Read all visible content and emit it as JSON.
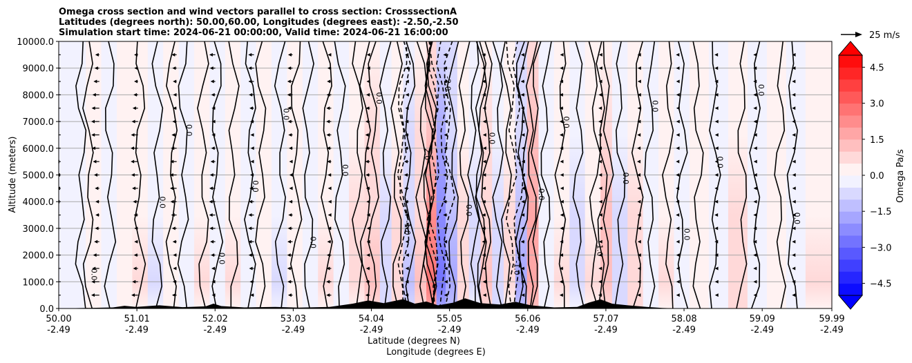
{
  "chart_data": {
    "type": "heatmap",
    "title_lines": [
      "Omega cross section and wind vectors parallel to cross section: CrosssectionA",
      "Latitudes (degrees north): 50.00,60.00, Longitudes (degrees east): -2.50,-2.50",
      "Simulation start time: 2024-06-21 00:00:00, Valid time: 2024-06-21 16:00:00"
    ],
    "xlabel_lines": [
      "Latitude (degrees N)",
      "Longitude (degrees E)"
    ],
    "ylabel": "Altitude (meters)",
    "x_ticks": [
      {
        "lat": 50.0,
        "label1": "50.00",
        "label2": "-2.49"
      },
      {
        "lat": 51.01,
        "label1": "51.01",
        "label2": "-2.49"
      },
      {
        "lat": 52.02,
        "label1": "52.02",
        "label2": "-2.49"
      },
      {
        "lat": 53.03,
        "label1": "53.03",
        "label2": "-2.49"
      },
      {
        "lat": 54.04,
        "label1": "54.04",
        "label2": "-2.49"
      },
      {
        "lat": 55.05,
        "label1": "55.05",
        "label2": "-2.49"
      },
      {
        "lat": 56.06,
        "label1": "56.06",
        "label2": "-2.49"
      },
      {
        "lat": 57.07,
        "label1": "57.07",
        "label2": "-2.49"
      },
      {
        "lat": 58.08,
        "label1": "58.08",
        "label2": "-2.49"
      },
      {
        "lat": 59.09,
        "label1": "59.09",
        "label2": "-2.49"
      },
      {
        "lat": 59.99,
        "label1": "59.99",
        "label2": "-2.49"
      }
    ],
    "xlim": [
      50.0,
      59.99
    ],
    "ylim": [
      0,
      10000
    ],
    "y_ticks": [
      0,
      1000,
      2000,
      3000,
      4000,
      5000,
      6000,
      7000,
      8000,
      9000,
      10000
    ],
    "y_tick_labels": [
      "0.0",
      "1000.0",
      "2000.0",
      "3000.0",
      "4000.0",
      "5000.0",
      "6000.0",
      "7000.0",
      "8000.0",
      "9000.0",
      "10000.0"
    ],
    "grid_horizontal": true,
    "colorbar": {
      "label": "Omega Pa/s",
      "vmin": -5.0,
      "vmax": 5.0,
      "ticks": [
        4.5,
        3.0,
        1.5,
        0.0,
        -1.5,
        -3.0,
        -4.5
      ],
      "tick_labels": [
        "4.5",
        "3.0",
        "1.5",
        "0.0",
        "−1.5",
        "−3.0",
        "−4.5"
      ],
      "colormap": "bwr",
      "levels": 20,
      "extend": "both"
    },
    "quiver_key": {
      "label": "25 m/s",
      "speed": 25
    },
    "contour_levels": [
      -2.0,
      -1.0,
      0.0,
      1.0,
      2.0
    ],
    "contour_label_texts": [
      "0.0",
      "1.0",
      "-1.0",
      "2.0",
      "-2.0"
    ],
    "columns": [
      {
        "lat": 50.0,
        "omega": -0.3
      },
      {
        "lat": 50.17,
        "omega": -0.2
      },
      {
        "lat": 50.35,
        "omega": 0.1
      },
      {
        "lat": 50.55,
        "omega": -0.4
      },
      {
        "lat": 50.75,
        "omega": 0.3
      },
      {
        "lat": 50.95,
        "omega": 0.5
      },
      {
        "lat": 51.15,
        "omega": -0.6
      },
      {
        "lat": 51.35,
        "omega": 0.4
      },
      {
        "lat": 51.55,
        "omega": -0.3
      },
      {
        "lat": 51.75,
        "omega": 0.6
      },
      {
        "lat": 51.95,
        "omega": -0.4
      },
      {
        "lat": 52.15,
        "omega": 0.5
      },
      {
        "lat": 52.35,
        "omega": -0.5
      },
      {
        "lat": 52.55,
        "omega": 0.3
      },
      {
        "lat": 52.75,
        "omega": -0.6
      },
      {
        "lat": 52.95,
        "omega": 0.4
      },
      {
        "lat": 53.15,
        "omega": -0.3
      },
      {
        "lat": 53.35,
        "omega": 0.6
      },
      {
        "lat": 53.55,
        "omega": -0.5
      },
      {
        "lat": 53.75,
        "omega": 0.7
      },
      {
        "lat": 53.95,
        "omega": 1.2
      },
      {
        "lat": 54.15,
        "omega": -0.8
      },
      {
        "lat": 54.3,
        "omega": 0.9
      },
      {
        "lat": 54.45,
        "omega": -1.2
      },
      {
        "lat": 54.6,
        "omega": 1.0
      },
      {
        "lat": 54.75,
        "omega": 2.6
      },
      {
        "lat": 54.88,
        "omega": -2.8
      },
      {
        "lat": 55.0,
        "omega": -1.6
      },
      {
        "lat": 55.15,
        "omega": 0.8
      },
      {
        "lat": 55.3,
        "omega": -0.7
      },
      {
        "lat": 55.45,
        "omega": 1.1
      },
      {
        "lat": 55.6,
        "omega": -0.9
      },
      {
        "lat": 55.75,
        "omega": 0.7
      },
      {
        "lat": 55.9,
        "omega": -1.8
      },
      {
        "lat": 56.05,
        "omega": 1.9
      },
      {
        "lat": 56.2,
        "omega": -0.5
      },
      {
        "lat": 56.4,
        "omega": 0.6
      },
      {
        "lat": 56.6,
        "omega": -0.7
      },
      {
        "lat": 56.8,
        "omega": 0.5
      },
      {
        "lat": 57.0,
        "omega": 1.3
      },
      {
        "lat": 57.15,
        "omega": -0.9
      },
      {
        "lat": 57.35,
        "omega": 0.8
      },
      {
        "lat": 57.55,
        "omega": -0.4
      },
      {
        "lat": 57.75,
        "omega": 0.5
      },
      {
        "lat": 57.95,
        "omega": -0.3
      },
      {
        "lat": 58.15,
        "omega": 0.3
      },
      {
        "lat": 58.4,
        "omega": -0.4
      },
      {
        "lat": 58.65,
        "omega": 0.9
      },
      {
        "lat": 58.9,
        "omega": -0.3
      },
      {
        "lat": 59.15,
        "omega": 0.4
      },
      {
        "lat": 59.4,
        "omega": -0.2
      },
      {
        "lat": 59.65,
        "omega": 0.5
      },
      {
        "lat": 59.99,
        "omega": 0.2
      }
    ],
    "terrain": [
      {
        "lat": 50.0,
        "alt": 0
      },
      {
        "lat": 50.7,
        "alt": 40
      },
      {
        "lat": 50.85,
        "alt": 100
      },
      {
        "lat": 51.0,
        "alt": 60
      },
      {
        "lat": 51.3,
        "alt": 120
      },
      {
        "lat": 51.6,
        "alt": 50
      },
      {
        "lat": 51.9,
        "alt": 80
      },
      {
        "lat": 52.0,
        "alt": 180
      },
      {
        "lat": 52.1,
        "alt": 90
      },
      {
        "lat": 52.4,
        "alt": 40
      },
      {
        "lat": 52.8,
        "alt": 60
      },
      {
        "lat": 53.1,
        "alt": 30
      },
      {
        "lat": 53.5,
        "alt": 60
      },
      {
        "lat": 53.8,
        "alt": 180
      },
      {
        "lat": 54.0,
        "alt": 300
      },
      {
        "lat": 54.2,
        "alt": 200
      },
      {
        "lat": 54.45,
        "alt": 350
      },
      {
        "lat": 54.6,
        "alt": 180
      },
      {
        "lat": 54.75,
        "alt": 260
      },
      {
        "lat": 54.9,
        "alt": 120
      },
      {
        "lat": 55.1,
        "alt": 220
      },
      {
        "lat": 55.25,
        "alt": 380
      },
      {
        "lat": 55.45,
        "alt": 200
      },
      {
        "lat": 55.7,
        "alt": 150
      },
      {
        "lat": 55.9,
        "alt": 250
      },
      {
        "lat": 56.1,
        "alt": 120
      },
      {
        "lat": 56.4,
        "alt": 40
      },
      {
        "lat": 56.7,
        "alt": 60
      },
      {
        "lat": 56.85,
        "alt": 220
      },
      {
        "lat": 57.0,
        "alt": 340
      },
      {
        "lat": 57.15,
        "alt": 180
      },
      {
        "lat": 57.35,
        "alt": 120
      },
      {
        "lat": 57.6,
        "alt": 60
      },
      {
        "lat": 57.8,
        "alt": 20
      },
      {
        "lat": 58.0,
        "alt": 0
      },
      {
        "lat": 59.99,
        "alt": 0
      }
    ],
    "wind_vectors_note": "westward-pointing arrows, strongest over western part of section"
  }
}
